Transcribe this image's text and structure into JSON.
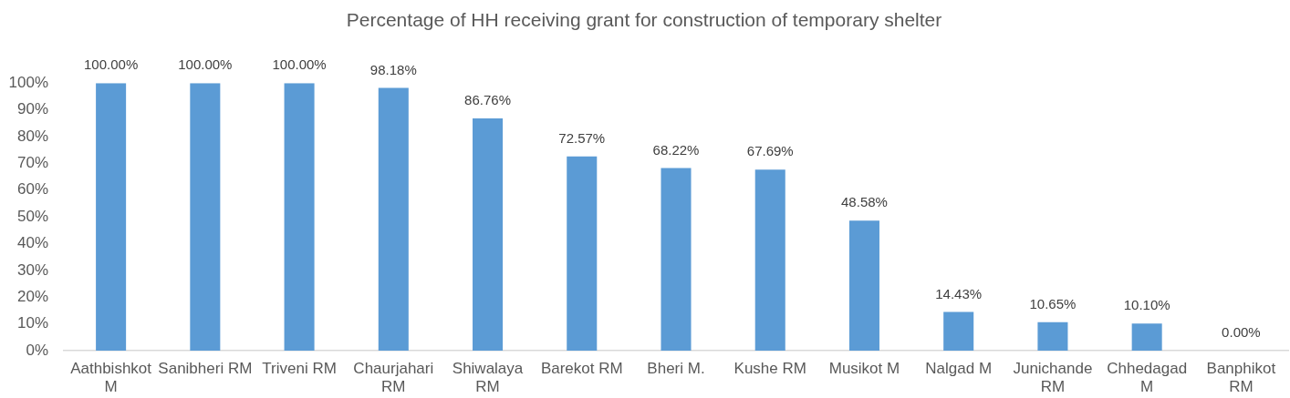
{
  "chart_data": {
    "type": "bar",
    "title": "Percentage of HH receiving grant for construction of temporary shelter",
    "categories": [
      "Aathbishkot M",
      "Sanibheri RM",
      "Triveni RM",
      "Chaurjahari RM",
      "Shiwalaya RM",
      "Barekot RM",
      "Bheri M.",
      "Kushe RM",
      "Musikot M",
      "Nalgad M",
      "Junichande RM",
      "Chhedagad M",
      "Banphikot RM"
    ],
    "values": [
      100,
      100,
      100,
      98.18,
      86.76,
      72.57,
      68.22,
      67.69,
      48.58,
      14.43,
      10.65,
      10.1,
      0
    ],
    "value_labels": [
      "100.00%",
      "100.00%",
      "100.00%",
      "98.18%",
      "86.76%",
      "72.57%",
      "68.22%",
      "67.69%",
      "48.58%",
      "14.43%",
      "10.65%",
      "10.10%",
      "0.00%"
    ],
    "color": "#5b9bd5",
    "ylim": [
      0,
      100
    ],
    "yticks": [
      {
        "value": 0,
        "label": "0%"
      },
      {
        "value": 10,
        "label": "10%"
      },
      {
        "value": 20,
        "label": "20%"
      },
      {
        "value": 30,
        "label": "30%"
      },
      {
        "value": 40,
        "label": "40%"
      },
      {
        "value": 50,
        "label": "50%"
      },
      {
        "value": 60,
        "label": "60%"
      },
      {
        "value": 70,
        "label": "70%"
      },
      {
        "value": 80,
        "label": "80%"
      },
      {
        "value": 90,
        "label": "90%"
      },
      {
        "value": 100,
        "label": "100%"
      }
    ]
  }
}
